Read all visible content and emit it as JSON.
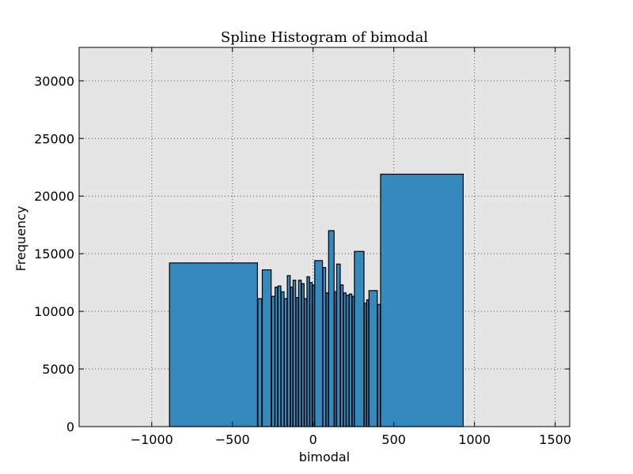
{
  "chart_data": {
    "type": "bar",
    "title": "Spline Histogram of bimodal",
    "xlabel": "bimodal",
    "ylabel": "Frequency",
    "xlim": [
      -1450,
      1590
    ],
    "ylim": [
      0,
      32900
    ],
    "xticks": [
      -1000,
      -500,
      0,
      500,
      1000,
      1500
    ],
    "xtick_labels": [
      "−1000",
      "−500",
      "0",
      "500",
      "1000",
      "1500"
    ],
    "yticks": [
      0,
      5000,
      10000,
      15000,
      20000,
      25000,
      30000
    ],
    "ytick_labels": [
      "0",
      "5000",
      "10000",
      "15000",
      "20000",
      "25000",
      "30000"
    ],
    "grid": true,
    "legend": "none",
    "colors": {
      "bar_fill": "#348ABD",
      "bar_edge": "#000000",
      "plot_bg": "#E5E5E5",
      "grid": "#555555",
      "axes": "#000000"
    },
    "bins": [
      {
        "x0": -890,
        "x1": -345,
        "value": 14200
      },
      {
        "x0": -342,
        "x1": -318,
        "value": 11100
      },
      {
        "x0": -315,
        "x1": -260,
        "value": 13600
      },
      {
        "x0": -257,
        "x1": -238,
        "value": 11300
      },
      {
        "x0": -236,
        "x1": -220,
        "value": 12100
      },
      {
        "x0": -218,
        "x1": -200,
        "value": 12200
      },
      {
        "x0": -198,
        "x1": -180,
        "value": 11700
      },
      {
        "x0": -178,
        "x1": -162,
        "value": 11100
      },
      {
        "x0": -160,
        "x1": -142,
        "value": 13100
      },
      {
        "x0": -140,
        "x1": -126,
        "value": 12100
      },
      {
        "x0": -124,
        "x1": -108,
        "value": 12700
      },
      {
        "x0": -106,
        "x1": -92,
        "value": 11200
      },
      {
        "x0": -90,
        "x1": -74,
        "value": 12700
      },
      {
        "x0": -72,
        "x1": -56,
        "value": 12400
      },
      {
        "x0": -54,
        "x1": -40,
        "value": 11100
      },
      {
        "x0": -38,
        "x1": -22,
        "value": 13000
      },
      {
        "x0": -20,
        "x1": -6,
        "value": 12500
      },
      {
        "x0": -4,
        "x1": 8,
        "value": 12300
      },
      {
        "x0": 10,
        "x1": 58,
        "value": 14400
      },
      {
        "x0": 60,
        "x1": 78,
        "value": 13800
      },
      {
        "x0": 80,
        "x1": 94,
        "value": 11600
      },
      {
        "x0": 96,
        "x1": 130,
        "value": 17000
      },
      {
        "x0": 132,
        "x1": 144,
        "value": 11700
      },
      {
        "x0": 146,
        "x1": 168,
        "value": 14100
      },
      {
        "x0": 170,
        "x1": 186,
        "value": 12300
      },
      {
        "x0": 188,
        "x1": 204,
        "value": 11600
      },
      {
        "x0": 206,
        "x1": 222,
        "value": 11400
      },
      {
        "x0": 224,
        "x1": 240,
        "value": 11500
      },
      {
        "x0": 242,
        "x1": 254,
        "value": 11300
      },
      {
        "x0": 256,
        "x1": 315,
        "value": 15200
      },
      {
        "x0": 317,
        "x1": 330,
        "value": 10700
      },
      {
        "x0": 332,
        "x1": 344,
        "value": 11000
      },
      {
        "x0": 346,
        "x1": 398,
        "value": 11800
      },
      {
        "x0": 400,
        "x1": 416,
        "value": 10600
      },
      {
        "x0": 418,
        "x1": 930,
        "value": 21900
      }
    ]
  }
}
